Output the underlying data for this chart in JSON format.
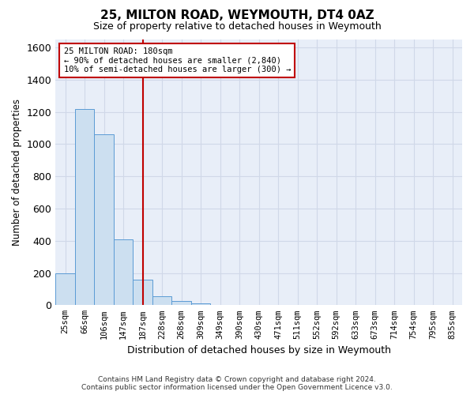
{
  "title": "25, MILTON ROAD, WEYMOUTH, DT4 0AZ",
  "subtitle": "Size of property relative to detached houses in Weymouth",
  "xlabel": "Distribution of detached houses by size in Weymouth",
  "ylabel": "Number of detached properties",
  "footer_line1": "Contains HM Land Registry data © Crown copyright and database right 2024.",
  "footer_line2": "Contains public sector information licensed under the Open Government Licence v3.0.",
  "bin_labels": [
    "25sqm",
    "66sqm",
    "106sqm",
    "147sqm",
    "187sqm",
    "228sqm",
    "268sqm",
    "309sqm",
    "349sqm",
    "390sqm",
    "430sqm",
    "471sqm",
    "511sqm",
    "552sqm",
    "592sqm",
    "633sqm",
    "673sqm",
    "714sqm",
    "754sqm",
    "795sqm",
    "835sqm"
  ],
  "bar_values": [
    200,
    1220,
    1060,
    410,
    160,
    55,
    25,
    12,
    0,
    0,
    0,
    0,
    0,
    0,
    0,
    0,
    0,
    0,
    0,
    0,
    0
  ],
  "bar_color": "#ccdff0",
  "bar_edge_color": "#5b9bd5",
  "vline_x_idx": 4,
  "vline_color": "#c00000",
  "annotation_line1": "25 MILTON ROAD: 180sqm",
  "annotation_line2": "← 90% of detached houses are smaller (2,840)",
  "annotation_line3": "10% of semi-detached houses are larger (300) →",
  "annotation_box_color": "#c00000",
  "ylim": [
    0,
    1650
  ],
  "yticks": [
    0,
    200,
    400,
    600,
    800,
    1000,
    1200,
    1400,
    1600
  ],
  "grid_color": "#d0d8e8",
  "plot_bg_color": "#e8eef8"
}
